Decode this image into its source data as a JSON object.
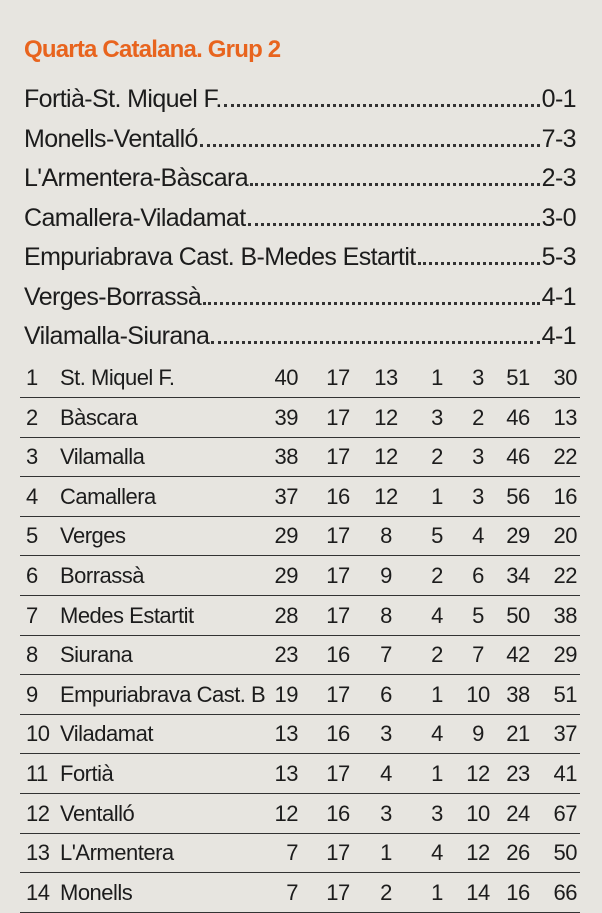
{
  "header": {
    "title": "Quarta Catalana. Grup 2"
  },
  "results": [
    {
      "match": "Fortià-St. Miquel F.",
      "score": "0-1"
    },
    {
      "match": "Monells-Ventalló",
      "score": "7-3"
    },
    {
      "match": "L'Armentera-Bàscara",
      "score": "2-3"
    },
    {
      "match": "Camallera-Viladamat",
      "score": "3-0"
    },
    {
      "match": "Empuriabrava Cast. B-Medes Estartit",
      "score": "5-3"
    },
    {
      "match": "Verges-Borrassà",
      "score": "4-1"
    },
    {
      "match": "Vilamalla-Siurana",
      "score": "4-1"
    }
  ],
  "table": {
    "rows": [
      [
        1,
        "St. Miquel F.",
        40,
        17,
        13,
        1,
        3,
        51,
        30
      ],
      [
        2,
        "Bàscara",
        39,
        17,
        12,
        3,
        2,
        46,
        13
      ],
      [
        3,
        "Vilamalla",
        38,
        17,
        12,
        2,
        3,
        46,
        22
      ],
      [
        4,
        "Camallera",
        37,
        16,
        12,
        1,
        3,
        56,
        16
      ],
      [
        5,
        "Verges",
        29,
        17,
        8,
        5,
        4,
        29,
        20
      ],
      [
        6,
        "Borrassà",
        29,
        17,
        9,
        2,
        6,
        34,
        22
      ],
      [
        7,
        "Medes Estartit",
        28,
        17,
        8,
        4,
        5,
        50,
        38
      ],
      [
        8,
        "Siurana",
        23,
        16,
        7,
        2,
        7,
        42,
        29
      ],
      [
        9,
        "Empuriabrava Cast. B",
        19,
        17,
        6,
        1,
        10,
        38,
        51
      ],
      [
        10,
        "Viladamat",
        13,
        16,
        3,
        4,
        9,
        21,
        37
      ],
      [
        11,
        "Fortià",
        13,
        17,
        4,
        1,
        12,
        23,
        41
      ],
      [
        12,
        "Ventalló",
        12,
        16,
        3,
        3,
        10,
        24,
        67
      ],
      [
        13,
        "L'Armentera",
        7,
        17,
        1,
        4,
        12,
        26,
        50
      ],
      [
        14,
        "Monells",
        7,
        17,
        2,
        1,
        14,
        16,
        66
      ]
    ]
  }
}
